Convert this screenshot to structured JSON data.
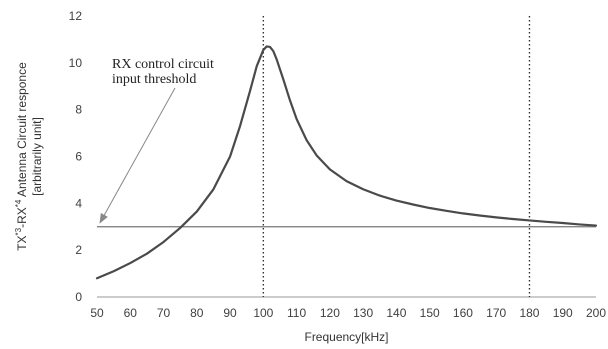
{
  "chart_data": {
    "type": "line",
    "title": "",
    "xlabel": "Frequency[kHz]",
    "ylabel_lines": [
      "TX-RX Antenna Circuit responce",
      "[arbitrarily unit]"
    ],
    "ylabel_superscripts": [
      "*3",
      "*4"
    ],
    "xlim": [
      50,
      200
    ],
    "ylim": [
      0,
      12
    ],
    "x_ticks": [
      "50",
      "60",
      "70",
      "80",
      "90",
      "100",
      "110",
      "120",
      "130",
      "140",
      "150",
      "160",
      "170",
      "180",
      "190",
      "200"
    ],
    "y_ticks": [
      "0",
      "2",
      "4",
      "6",
      "8",
      "10",
      "12"
    ],
    "grid": false,
    "series": [
      {
        "x": [
          50,
          55,
          60,
          65,
          70,
          75,
          80,
          85,
          90,
          93,
          96,
          98,
          100,
          101,
          102,
          103,
          104,
          106,
          108,
          110,
          113,
          116,
          120,
          125,
          130,
          135,
          140,
          145,
          150,
          155,
          160,
          165,
          170,
          175,
          180,
          185,
          190,
          195,
          200
        ],
        "y": [
          0.8,
          1.1,
          1.45,
          1.85,
          2.35,
          2.95,
          3.65,
          4.6,
          6.0,
          7.3,
          8.8,
          9.85,
          10.55,
          10.7,
          10.68,
          10.5,
          10.15,
          9.3,
          8.4,
          7.6,
          6.7,
          6.05,
          5.45,
          4.95,
          4.6,
          4.33,
          4.12,
          3.95,
          3.8,
          3.68,
          3.57,
          3.48,
          3.4,
          3.33,
          3.27,
          3.21,
          3.16,
          3.1,
          3.05
        ],
        "color": "#4a4a4a"
      }
    ],
    "threshold": {
      "y": 3,
      "color": "#777777"
    },
    "vertical_markers": [
      100,
      180
    ],
    "annotation": {
      "lines": [
        "RX control circuit",
        "input threshold"
      ],
      "arrow_to": [
        50,
        3
      ]
    }
  }
}
